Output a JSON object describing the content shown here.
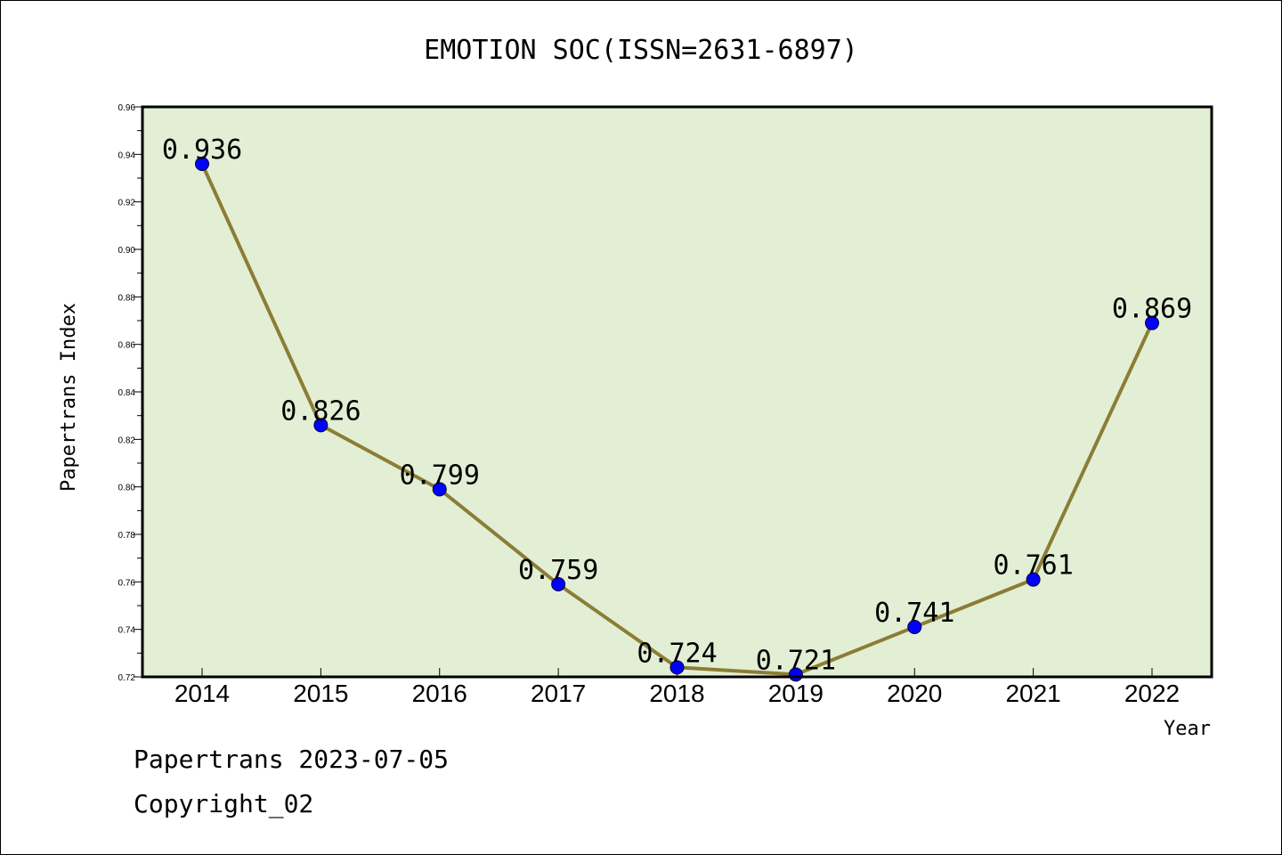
{
  "chart_data": {
    "type": "line",
    "title": "EMOTION SOC(ISSN=2631-6897)",
    "xlabel": "Year",
    "ylabel": "Papertrans Index",
    "x": [
      "2014",
      "2015",
      "2016",
      "2017",
      "2018",
      "2019",
      "2020",
      "2021",
      "2022"
    ],
    "series": [
      {
        "values": [
          0.936,
          0.826,
          0.799,
          0.759,
          0.724,
          0.721,
          0.741,
          0.761,
          0.869
        ],
        "labels": [
          "0.936",
          "0.826",
          "0.799",
          "0.759",
          "0.724",
          "0.721",
          "0.741",
          "0.761",
          "0.869"
        ]
      }
    ],
    "ylim": [
      0.72,
      0.96
    ],
    "yticks": [
      "0.72",
      "0.74",
      "0.76",
      "0.78",
      "0.80",
      "0.82",
      "0.84",
      "0.86",
      "0.88",
      "0.90",
      "0.92",
      "0.94",
      "0.96"
    ],
    "grid": false,
    "colors": {
      "plot_background": "#e2efd5",
      "line": "#8c7d35",
      "marker": "#0000ff"
    }
  },
  "footer": {
    "line1": "Papertrans 2023-07-05",
    "line2": "Copyright_02"
  }
}
